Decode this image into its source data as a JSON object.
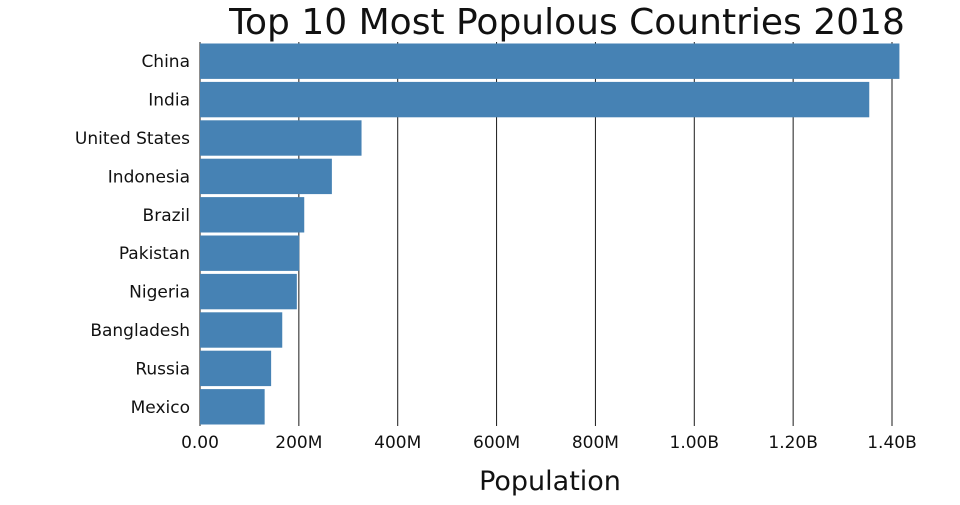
{
  "chart_data": {
    "type": "bar",
    "orientation": "horizontal",
    "title": "Top 10 Most Populous Countries 2018",
    "xlabel": "Population",
    "ylabel": "",
    "categories": [
      "China",
      "India",
      "United States",
      "Indonesia",
      "Brazil",
      "Pakistan",
      "Nigeria",
      "Bangladesh",
      "Russia",
      "Mexico"
    ],
    "values": [
      1415000000,
      1354000000,
      326800000,
      266800000,
      210900000,
      200800000,
      195900000,
      166400000,
      143900000,
      130800000
    ],
    "xlim": [
      0,
      1400000000
    ],
    "xticks": [
      0,
      200000000,
      400000000,
      600000000,
      800000000,
      1000000000,
      1200000000,
      1400000000
    ],
    "xtick_labels": [
      "0.00",
      "200M",
      "400M",
      "600M",
      "800M",
      "1.00B",
      "1.20B",
      "1.40B"
    ],
    "bar_color": "#4682b4",
    "grid": "vertical",
    "legend": "none"
  }
}
